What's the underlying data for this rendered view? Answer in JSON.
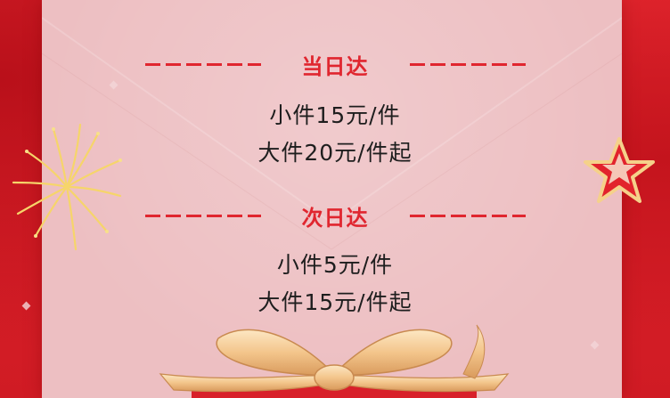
{
  "sections": [
    {
      "title": "当日达",
      "lines": [
        "小件15元/件",
        "大件20元/件起"
      ]
    },
    {
      "title": "次日达",
      "lines": [
        "小件5元/件",
        "大件15元/件起"
      ]
    }
  ],
  "colors": {
    "accent": "#e0262f",
    "card": "#edbfc2",
    "background": "#d81e26",
    "text": "#1e1e1e"
  },
  "decorations": [
    "firework-icon",
    "star-icon",
    "ribbon-bow-icon"
  ]
}
